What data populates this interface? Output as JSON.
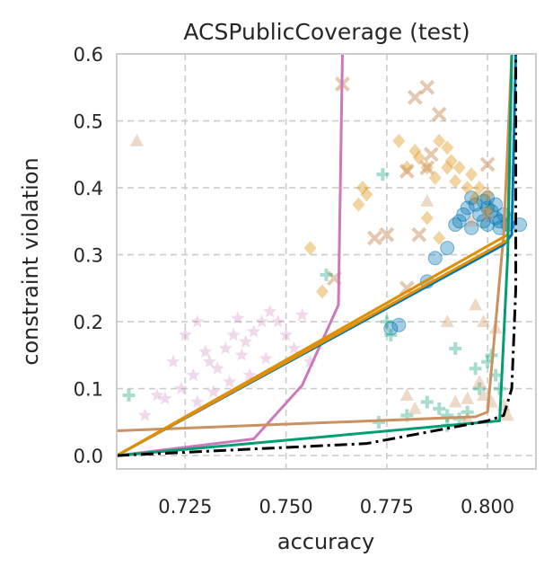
{
  "chart_data": {
    "type": "scatter",
    "title": "ACSPublicCoverage (test)",
    "xlabel": "accuracy",
    "ylabel": "constraint violation",
    "xlim": [
      0.708,
      0.812
    ],
    "ylim": [
      -0.02,
      0.6
    ],
    "xticks": [
      "0.725",
      "0.750",
      "0.775",
      "0.800"
    ],
    "xtick_values": [
      0.725,
      0.75,
      0.775,
      0.8
    ],
    "yticks": [
      "0.0",
      "0.1",
      "0.2",
      "0.3",
      "0.4",
      "0.5",
      "0.6"
    ],
    "ytick_values": [
      0.0,
      0.1,
      0.2,
      0.3,
      0.4,
      0.5,
      0.6
    ],
    "grid": true,
    "colors": {
      "blue": "#0173b2",
      "orange": "#de8f05",
      "green": "#029e73",
      "brown": "#ca9161",
      "pink": "#cc78bc",
      "dark": "#000000",
      "grid": "#cccccc",
      "frame": "#cccccc"
    },
    "lines": [
      {
        "color": "pink",
        "style": "solid",
        "points": [
          [
            0.708,
            0.0
          ],
          [
            0.742,
            0.025
          ],
          [
            0.754,
            0.105
          ],
          [
            0.763,
            0.225
          ],
          [
            0.764,
            0.6
          ]
        ]
      },
      {
        "color": "brown",
        "style": "solid",
        "points": [
          [
            0.708,
            0.037
          ],
          [
            0.797,
            0.058
          ],
          [
            0.8,
            0.065
          ],
          [
            0.804,
            0.33
          ],
          [
            0.806,
            0.6
          ]
        ]
      },
      {
        "color": "blue",
        "style": "solid",
        "points": [
          [
            0.708,
            0.0
          ],
          [
            0.804,
            0.315
          ],
          [
            0.806,
            0.33
          ],
          [
            0.807,
            0.6
          ]
        ]
      },
      {
        "color": "orange",
        "style": "solid",
        "points": [
          [
            0.708,
            0.0
          ],
          [
            0.805,
            0.33
          ],
          [
            0.806,
            0.6
          ]
        ]
      },
      {
        "color": "orange",
        "style": "solid",
        "points": [
          [
            0.708,
            0.0
          ],
          [
            0.805,
            0.322
          ],
          [
            0.806,
            0.6
          ]
        ]
      },
      {
        "color": "green",
        "style": "solid",
        "points": [
          [
            0.708,
            0.0
          ],
          [
            0.803,
            0.052
          ],
          [
            0.805,
            0.3
          ],
          [
            0.806,
            0.6
          ]
        ]
      },
      {
        "color": "dark",
        "style": "dashdot",
        "points": [
          [
            0.708,
            0.0
          ],
          [
            0.77,
            0.018
          ],
          [
            0.785,
            0.035
          ],
          [
            0.8,
            0.052
          ],
          [
            0.804,
            0.06
          ],
          [
            0.806,
            0.1
          ],
          [
            0.807,
            0.25
          ],
          [
            0.807,
            0.6
          ]
        ]
      }
    ],
    "scatter": [
      {
        "marker": "circle",
        "color": "blue",
        "points": [
          [
            0.799,
            0.38
          ],
          [
            0.8,
            0.37
          ],
          [
            0.801,
            0.365
          ],
          [
            0.802,
            0.355
          ],
          [
            0.803,
            0.35
          ],
          [
            0.797,
            0.375
          ],
          [
            0.796,
            0.385
          ],
          [
            0.795,
            0.37
          ],
          [
            0.794,
            0.36
          ],
          [
            0.793,
            0.35
          ],
          [
            0.792,
            0.345
          ],
          [
            0.8,
            0.385
          ],
          [
            0.802,
            0.375
          ],
          [
            0.804,
            0.36
          ],
          [
            0.805,
            0.345
          ],
          [
            0.808,
            0.345
          ],
          [
            0.798,
            0.36
          ],
          [
            0.796,
            0.34
          ],
          [
            0.79,
            0.31
          ],
          [
            0.787,
            0.295
          ],
          [
            0.785,
            0.26
          ],
          [
            0.778,
            0.195
          ],
          [
            0.776,
            0.19
          ],
          [
            0.8,
            0.345
          ],
          [
            0.803,
            0.34
          ],
          [
            0.799,
            0.35
          ]
        ]
      },
      {
        "marker": "diamond",
        "color": "orange",
        "points": [
          [
            0.778,
            0.47
          ],
          [
            0.783,
            0.445
          ],
          [
            0.785,
            0.43
          ],
          [
            0.787,
            0.415
          ],
          [
            0.79,
            0.43
          ],
          [
            0.792,
            0.41
          ],
          [
            0.795,
            0.4
          ],
          [
            0.797,
            0.385
          ],
          [
            0.8,
            0.365
          ],
          [
            0.79,
            0.46
          ],
          [
            0.788,
            0.47
          ],
          [
            0.77,
            0.39
          ],
          [
            0.768,
            0.375
          ],
          [
            0.769,
            0.4
          ],
          [
            0.756,
            0.31
          ],
          [
            0.759,
            0.245
          ],
          [
            0.791,
            0.44
          ],
          [
            0.785,
            0.355
          ],
          [
            0.788,
            0.325
          ],
          [
            0.798,
            0.4
          ],
          [
            0.8,
            0.39
          ],
          [
            0.796,
            0.42
          ],
          [
            0.793,
            0.43
          ],
          [
            0.78,
            0.43
          ],
          [
            0.782,
            0.455
          ]
        ]
      },
      {
        "marker": "x",
        "color": "brown",
        "points": [
          [
            0.764,
            0.555
          ],
          [
            0.782,
            0.535
          ],
          [
            0.785,
            0.55
          ],
          [
            0.788,
            0.51
          ],
          [
            0.78,
            0.425
          ],
          [
            0.785,
            0.43
          ],
          [
            0.786,
            0.45
          ],
          [
            0.8,
            0.435
          ],
          [
            0.772,
            0.325
          ],
          [
            0.775,
            0.33
          ],
          [
            0.762,
            0.265
          ],
          [
            0.783,
            0.33
          ],
          [
            0.78,
            0.25
          ]
        ]
      },
      {
        "marker": "plus",
        "color": "green",
        "points": [
          [
            0.711,
            0.09
          ],
          [
            0.774,
            0.42
          ],
          [
            0.76,
            0.27
          ],
          [
            0.776,
            0.18
          ],
          [
            0.775,
            0.2
          ],
          [
            0.792,
            0.16
          ],
          [
            0.797,
            0.13
          ],
          [
            0.8,
            0.14
          ],
          [
            0.801,
            0.15
          ],
          [
            0.802,
            0.12
          ],
          [
            0.798,
            0.1
          ],
          [
            0.785,
            0.08
          ],
          [
            0.788,
            0.07
          ],
          [
            0.79,
            0.06
          ],
          [
            0.793,
            0.055
          ],
          [
            0.795,
            0.065
          ],
          [
            0.773,
            0.05
          ],
          [
            0.78,
            0.06
          ],
          [
            0.79,
            0.045
          ],
          [
            0.803,
            0.1
          ]
        ]
      },
      {
        "marker": "triangle",
        "color": "brown",
        "points": [
          [
            0.713,
            0.47
          ],
          [
            0.785,
            0.38
          ],
          [
            0.796,
            0.35
          ],
          [
            0.8,
            0.36
          ],
          [
            0.79,
            0.2
          ],
          [
            0.797,
            0.225
          ],
          [
            0.799,
            0.2
          ],
          [
            0.802,
            0.19
          ],
          [
            0.798,
            0.11
          ],
          [
            0.795,
            0.085
          ],
          [
            0.792,
            0.08
          ],
          [
            0.78,
            0.09
          ],
          [
            0.782,
            0.07
          ],
          [
            0.799,
            0.09
          ],
          [
            0.801,
            0.08
          ],
          [
            0.804,
            0.075
          ],
          [
            0.795,
            0.055
          ],
          [
            0.805,
            0.06
          ]
        ]
      },
      {
        "marker": "star",
        "color": "pink",
        "points": [
          [
            0.715,
            0.06
          ],
          [
            0.718,
            0.09
          ],
          [
            0.72,
            0.085
          ],
          [
            0.722,
            0.14
          ],
          [
            0.724,
            0.1
          ],
          [
            0.725,
            0.18
          ],
          [
            0.728,
            0.2
          ],
          [
            0.73,
            0.155
          ],
          [
            0.731,
            0.14
          ],
          [
            0.733,
            0.13
          ],
          [
            0.735,
            0.16
          ],
          [
            0.737,
            0.18
          ],
          [
            0.739,
            0.15
          ],
          [
            0.74,
            0.17
          ],
          [
            0.742,
            0.185
          ],
          [
            0.744,
            0.2
          ],
          [
            0.746,
            0.215
          ],
          [
            0.748,
            0.2
          ],
          [
            0.75,
            0.18
          ],
          [
            0.752,
            0.16
          ],
          [
            0.745,
            0.145
          ],
          [
            0.741,
            0.12
          ],
          [
            0.736,
            0.11
          ],
          [
            0.732,
            0.095
          ],
          [
            0.727,
            0.12
          ],
          [
            0.756,
            0.14
          ],
          [
            0.738,
            0.205
          ],
          [
            0.728,
            0.08
          ],
          [
            0.754,
            0.21
          ]
        ]
      }
    ]
  }
}
